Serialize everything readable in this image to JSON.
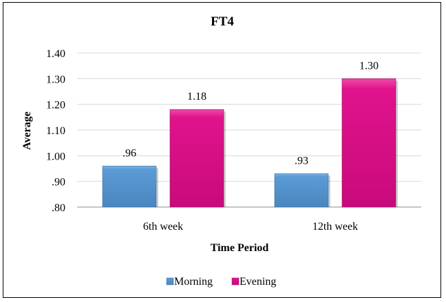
{
  "chart_data": {
    "type": "bar",
    "title": "FT4",
    "xlabel": "Time Period",
    "ylabel": "Average",
    "categories": [
      "6th week",
      "12th week"
    ],
    "series": [
      {
        "name": "Morning",
        "values": [
          0.96,
          0.93
        ],
        "labels": [
          ".96",
          ".93"
        ],
        "color": "#5b9bd5"
      },
      {
        "name": "Evening",
        "values": [
          1.18,
          1.3
        ],
        "labels": [
          "1.18",
          "1.30"
        ],
        "color": "#e0138c"
      }
    ],
    "ylim": [
      0.8,
      1.4
    ],
    "yticks": [
      0.8,
      0.9,
      1.0,
      1.1,
      1.2,
      1.3,
      1.4
    ],
    "ytick_labels": [
      ".80",
      ".90",
      "1.00",
      "1.10",
      "1.20",
      "1.30",
      "1.40"
    ],
    "grid": true,
    "legend_position": "bottom"
  }
}
